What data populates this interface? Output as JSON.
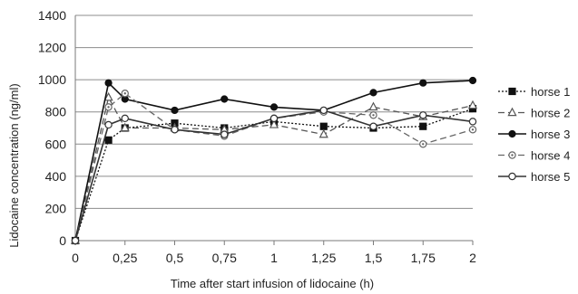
{
  "chart_data": {
    "type": "line",
    "title": "",
    "xlabel": "Time after start infusion of lidocaine (h)",
    "ylabel": "Lidocaine concentration (ng/ml)",
    "x": [
      0,
      0.167,
      0.25,
      0.5,
      0.75,
      1,
      1.25,
      1.5,
      1.75,
      2
    ],
    "x_tick_values": [
      0,
      0.25,
      0.5,
      0.75,
      1,
      1.25,
      1.5,
      1.75,
      2
    ],
    "x_tick_labels": [
      "0",
      "0,25",
      "0,5",
      "0,75",
      "1",
      "1,25",
      "1,5",
      "1,75",
      "2"
    ],
    "xlim": [
      0,
      2
    ],
    "ylim": [
      0,
      1400
    ],
    "y_ticks": [
      0,
      200,
      400,
      600,
      800,
      1000,
      1200,
      1400
    ],
    "grid": "horizontal",
    "legend_position": "right",
    "series": [
      {
        "name": "horse 1",
        "values": [
          0,
          625,
          700,
          730,
          700,
          740,
          710,
          700,
          710,
          820
        ],
        "color": "#111111",
        "dash": "dotted",
        "marker": "square-filled"
      },
      {
        "name": "horse 2",
        "values": [
          0,
          890,
          700,
          700,
          690,
          720,
          660,
          830,
          770,
          840
        ],
        "color": "#555555",
        "dash": "dashed",
        "marker": "triangle-open"
      },
      {
        "name": "horse 3",
        "values": [
          0,
          980,
          880,
          810,
          880,
          830,
          810,
          920,
          980,
          995
        ],
        "color": "#111111",
        "dash": "solid",
        "marker": "circle-filled"
      },
      {
        "name": "horse 4",
        "values": [
          0,
          830,
          915,
          690,
          650,
          760,
          800,
          780,
          600,
          690
        ],
        "color": "#666666",
        "dash": "dashed",
        "marker": "circle-open-dot"
      },
      {
        "name": "horse 5",
        "values": [
          0,
          720,
          760,
          690,
          660,
          760,
          810,
          710,
          780,
          740
        ],
        "color": "#333333",
        "dash": "solid",
        "marker": "circle-open"
      }
    ]
  }
}
